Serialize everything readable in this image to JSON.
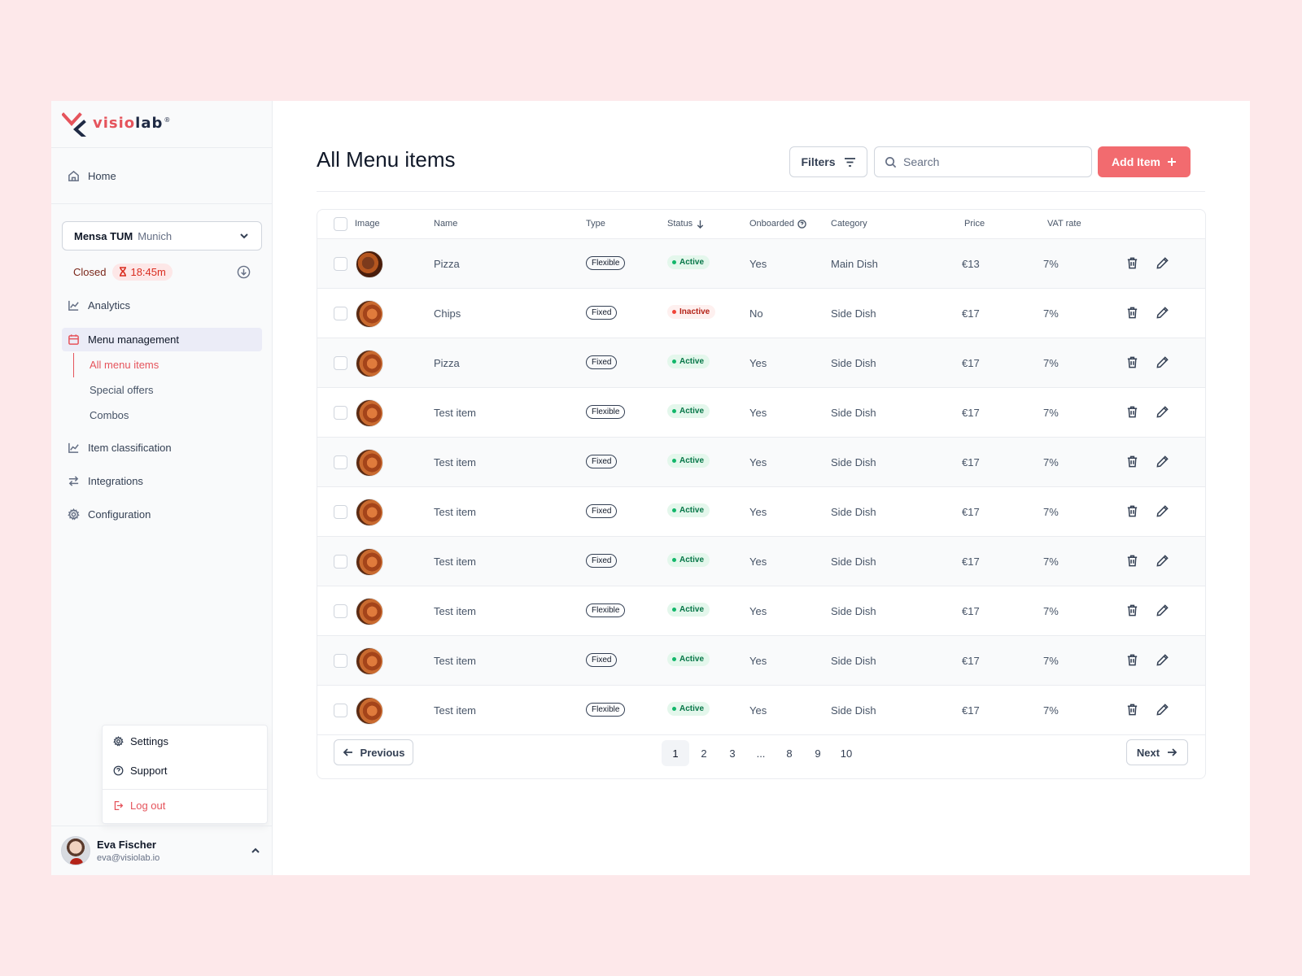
{
  "brand": {
    "name_part1": "visio",
    "name_part2": "lab",
    "mark": "®"
  },
  "sidebar": {
    "home": "Home",
    "location": {
      "name": "Mensa TUM",
      "city": "Munich"
    },
    "store_status": {
      "state": "Closed",
      "timer": "18:45m"
    },
    "analytics": "Analytics",
    "menu_management": "Menu management",
    "sub_items": [
      "All menu items",
      "Special offers",
      "Combos"
    ],
    "item_classification": "Item classification",
    "integrations": "Integrations",
    "configuration": "Configuration",
    "popup": {
      "settings": "Settings",
      "support": "Support",
      "logout": "Log out"
    },
    "user": {
      "name": "Eva Fischer",
      "email": "eva@visiolab.io"
    }
  },
  "main": {
    "title": "All Menu items",
    "filters_label": "Filters",
    "search_placeholder": "Search",
    "add_label": "Add Item",
    "columns": {
      "image": "Image",
      "name": "Name",
      "type": "Type",
      "status": "Status",
      "onboarded": "Onboarded",
      "category": "Category",
      "price": "Price",
      "vat": "VAT rate"
    },
    "rows": [
      {
        "name": "Pizza",
        "type": "Flexible",
        "status": "Active",
        "onboarded": "Yes",
        "category": "Main Dish",
        "price": "€13",
        "vat": "7%"
      },
      {
        "name": "Chips",
        "type": "Fixed",
        "status": "Inactive",
        "onboarded": "No",
        "category": "Side Dish",
        "price": "€17",
        "vat": "7%"
      },
      {
        "name": "Pizza",
        "type": "Fixed",
        "status": "Active",
        "onboarded": "Yes",
        "category": "Side Dish",
        "price": "€17",
        "vat": "7%"
      },
      {
        "name": "Test item",
        "type": "Flexible",
        "status": "Active",
        "onboarded": "Yes",
        "category": "Side Dish",
        "price": "€17",
        "vat": "7%"
      },
      {
        "name": "Test item",
        "type": "Fixed",
        "status": "Active",
        "onboarded": "Yes",
        "category": "Side Dish",
        "price": "€17",
        "vat": "7%"
      },
      {
        "name": "Test item",
        "type": "Fixed",
        "status": "Active",
        "onboarded": "Yes",
        "category": "Side Dish",
        "price": "€17",
        "vat": "7%"
      },
      {
        "name": "Test item",
        "type": "Fixed",
        "status": "Active",
        "onboarded": "Yes",
        "category": "Side Dish",
        "price": "€17",
        "vat": "7%"
      },
      {
        "name": "Test item",
        "type": "Flexible",
        "status": "Active",
        "onboarded": "Yes",
        "category": "Side Dish",
        "price": "€17",
        "vat": "7%"
      },
      {
        "name": "Test item",
        "type": "Fixed",
        "status": "Active",
        "onboarded": "Yes",
        "category": "Side Dish",
        "price": "€17",
        "vat": "7%"
      },
      {
        "name": "Test item",
        "type": "Flexible",
        "status": "Active",
        "onboarded": "Yes",
        "category": "Side Dish",
        "price": "€17",
        "vat": "7%"
      }
    ],
    "pagination": {
      "previous": "Previous",
      "next": "Next",
      "pages": [
        "1",
        "2",
        "3",
        "...",
        "8",
        "9",
        "10"
      ],
      "current": "1"
    }
  }
}
